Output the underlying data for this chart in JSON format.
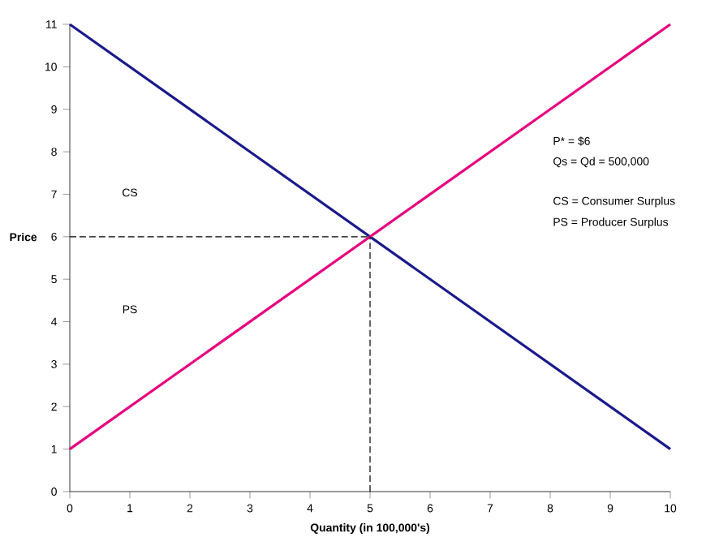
{
  "chart_data": {
    "type": "line",
    "xlabel": "Quantity (in 100,000's)",
    "ylabel": "Price",
    "xlim": [
      0,
      10
    ],
    "ylim": [
      0,
      11
    ],
    "xticks": [
      0,
      1,
      2,
      3,
      4,
      5,
      6,
      7,
      8,
      9,
      10
    ],
    "yticks": [
      0,
      1,
      2,
      3,
      4,
      5,
      6,
      7,
      8,
      9,
      10,
      11
    ],
    "grid": false,
    "marker": "none",
    "series": [
      {
        "color": "#1a1a8c",
        "x": [
          0,
          10
        ],
        "values": [
          11,
          1
        ],
        "line_style": "solid"
      },
      {
        "color": "#e6007e",
        "x": [
          0,
          10
        ],
        "values": [
          1,
          11
        ],
        "line_style": "solid"
      },
      {
        "color": "#000000",
        "x": [
          0,
          5
        ],
        "values": [
          6,
          6
        ],
        "line_style": "dashed"
      },
      {
        "color": "#000000",
        "x": [
          5,
          5
        ],
        "values": [
          0,
          6
        ],
        "line_style": "dashed"
      }
    ],
    "annotations": [
      "CS",
      "PS",
      "P* = $6",
      "Qs = Qd = 500,000",
      "CS = Consumer Surplus",
      "PS = Producer Surplus"
    ]
  }
}
